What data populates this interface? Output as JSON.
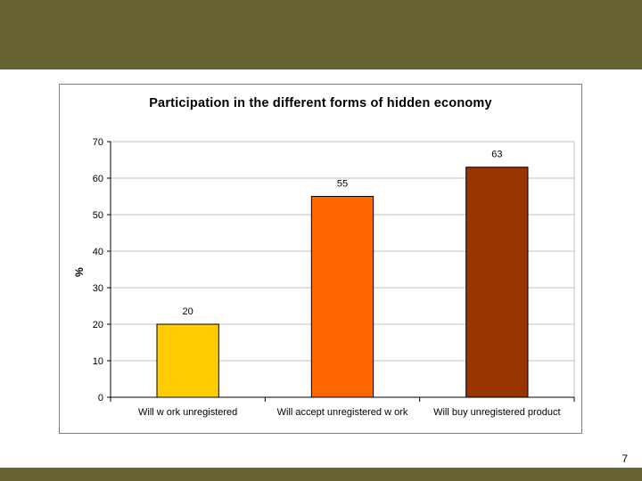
{
  "slide": {
    "number": "7"
  },
  "chart_data": {
    "type": "bar",
    "title": "Participation in the different forms of hidden economy",
    "categories": [
      "Will w ork unregistered",
      "Will accept unregistered w ork",
      "Will buy unregistered product"
    ],
    "values": [
      20,
      55,
      63
    ],
    "data_labels": [
      "20",
      "55",
      "63"
    ],
    "bar_colors": [
      "#ffcc00",
      "#ff6600",
      "#993300"
    ],
    "xlabel": "",
    "ylabel": "%",
    "ylim": [
      0,
      70
    ],
    "yticks": [
      "0",
      "10",
      "20",
      "30",
      "40",
      "50",
      "60",
      "70"
    ],
    "grid": true,
    "legend": "none"
  },
  "colors": {
    "band": "#676333",
    "gridline": "#c0c0c0",
    "frame": "#7f7f7f"
  }
}
